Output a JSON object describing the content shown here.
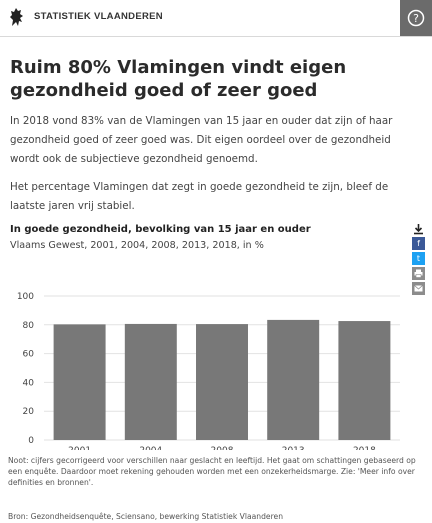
{
  "header": {
    "brand": "STATISTIEK VLAANDEREN",
    "help_label": "?"
  },
  "article": {
    "title": "Ruim 80% Vlamingen vindt eigen gezondheid goed of zeer goed",
    "paragraph1": "In 2018 vond 83% van de Vlamingen van 15 jaar en ouder dat zijn of haar gezondheid goed of zeer goed was. Dit eigen oordeel over de gezondheid wordt ook de subjectieve gezondheid genoemd.",
    "paragraph2": "Het percentage Vlamingen dat zegt in goede gezondheid te zijn, bleef de laatste jaren vrij stabiel."
  },
  "share": {
    "download_icon": "download-icon",
    "facebook_label": "f",
    "twitter_label": "t",
    "print_icon": "print-icon",
    "email_icon": "email-icon",
    "colors": {
      "facebook": "#3b5998",
      "twitter": "#1da1f2",
      "gray": "#8c8c8c"
    }
  },
  "chart_data": {
    "type": "bar",
    "title": "In goede gezondheid, bevolking van 15 jaar en ouder",
    "subtitle": "Vlaams Gewest, 2001, 2004, 2008, 2013, 2018, in %",
    "categories": [
      "2001",
      "2004",
      "2008",
      "2013",
      "2018"
    ],
    "values": [
      80.3,
      80.6,
      80.5,
      83.4,
      82.6
    ],
    "ylim": [
      0,
      100
    ],
    "yticks": [
      0,
      20,
      40,
      60,
      80,
      100
    ],
    "grid": true,
    "legend": "none",
    "bar_color": "#787878",
    "xlabel": "",
    "ylabel": ""
  },
  "footer": {
    "note": "Noot: cijfers gecorrigeerd voor verschillen naar geslacht en leeftijd. Het gaat om schattingen gebaseerd op een enquête. Daardoor moet rekening gehouden worden met een onzekerheidsmarge. Zie: 'Meer info over definities en bronnen'.",
    "source": "Bron: Gezondheidsenquête, Sciensano, bewerking Statistiek Vlaanderen"
  }
}
